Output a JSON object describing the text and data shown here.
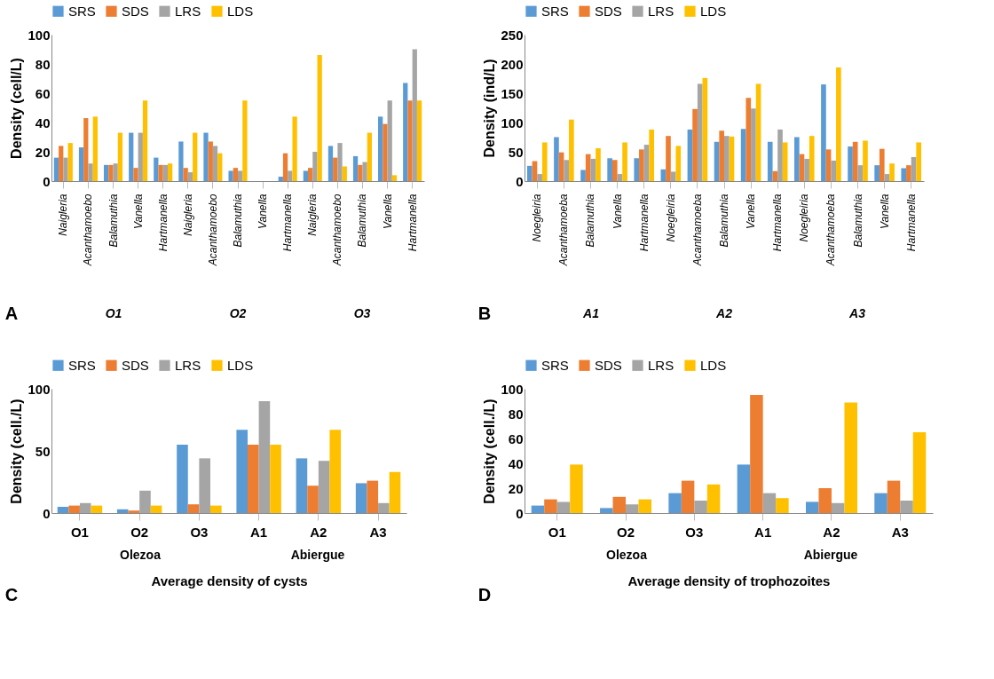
{
  "chart_data": [
    {
      "type": "bar",
      "ylabel": "Density (cell/L)",
      "legend": "top",
      "ylim": [
        0,
        100
      ],
      "yticks": [
        0,
        20,
        40,
        60,
        80,
        100
      ],
      "annotations": [
        "A",
        "O1",
        "O2",
        "O3"
      ],
      "categories": [
        "Naigleria",
        "Acanthamoebo",
        "Balamuthia",
        "Vanella",
        "Hartmanella",
        "Naigleria",
        "Acanthamoebo",
        "Balamuthia",
        "Vanella",
        "Hartmanella",
        "Naigleria",
        "Acanthamoebo",
        "Balamuthia",
        "Vanella",
        "Hartmanella"
      ],
      "series": [
        {
          "name": "SRS",
          "color": "#5b9bd5",
          "values": [
            16,
            23,
            11,
            33,
            16,
            27,
            33,
            7,
            0,
            3,
            7,
            24,
            17,
            44,
            67
          ]
        },
        {
          "name": "SDS",
          "color": "#ed7d31",
          "values": [
            24,
            43,
            11,
            9,
            11,
            9,
            27,
            9,
            0,
            19,
            9,
            16,
            11,
            39,
            55
          ]
        },
        {
          "name": "LRS",
          "color": "#a5a5a5",
          "values": [
            16,
            12,
            12,
            33,
            11,
            6,
            24,
            7,
            0,
            7,
            20,
            26,
            13,
            55,
            90
          ]
        },
        {
          "name": "LDS",
          "color": "#ffc000",
          "values": [
            26,
            44,
            33,
            55,
            12,
            33,
            19,
            55,
            0,
            44,
            86,
            10,
            33,
            4,
            55
          ]
        }
      ]
    },
    {
      "type": "bar",
      "ylabel": "Density (ind/L)",
      "legend": "top",
      "ylim": [
        0,
        250
      ],
      "yticks": [
        0,
        50,
        100,
        150,
        200,
        250
      ],
      "annotations": [
        "B",
        "A1",
        "A2",
        "A3"
      ],
      "categories": [
        "Noegleiria",
        "Acanthamoeba",
        "Balamuthia",
        "Vanella",
        "Hartmanella",
        "Noegleiria",
        "Acanthamoeba",
        "Balamuthia",
        "Vanella",
        "Hartmanella",
        "Noegleiria",
        "Acanthamoeba",
        "Balamuthia",
        "Vanella",
        "Hartmanella"
      ],
      "series": [
        {
          "name": "SRS",
          "color": "#5b9bd5",
          "values": [
            26,
            75,
            19,
            39,
            39,
            20,
            88,
            67,
            89,
            67,
            75,
            165,
            59,
            27,
            22
          ]
        },
        {
          "name": "SDS",
          "color": "#ed7d31",
          "values": [
            34,
            49,
            46,
            36,
            54,
            77,
            123,
            86,
            142,
            17,
            46,
            54,
            67,
            55,
            27
          ]
        },
        {
          "name": "LRS",
          "color": "#a5a5a5",
          "values": [
            12,
            36,
            38,
            12,
            62,
            16,
            166,
            77,
            124,
            88,
            38,
            35,
            27,
            12,
            41
          ]
        },
        {
          "name": "LDS",
          "color": "#ffc000",
          "values": [
            66,
            105,
            56,
            66,
            88,
            60,
            176,
            76,
            166,
            66,
            77,
            194,
            69,
            30,
            66
          ]
        }
      ]
    },
    {
      "type": "bar",
      "ylabel": "Density  (cell./L)",
      "xlabel": "Average density of cysts",
      "legend": "top",
      "ylim": [
        0,
        100
      ],
      "yticks": [
        0,
        50,
        100
      ],
      "annotations": [
        "C",
        "Olezoa",
        "Abiergue"
      ],
      "categories": [
        "O1",
        "O2",
        "O3",
        "A1",
        "A2",
        "A3"
      ],
      "series": [
        {
          "name": "SRS",
          "color": "#5b9bd5",
          "values": [
            5,
            3,
            55,
            67,
            44,
            24
          ]
        },
        {
          "name": "SDS",
          "color": "#ed7d31",
          "values": [
            6,
            2,
            7,
            55,
            22,
            26
          ]
        },
        {
          "name": "LRS",
          "color": "#a5a5a5",
          "values": [
            8,
            18,
            44,
            90,
            42,
            8
          ]
        },
        {
          "name": "LDS",
          "color": "#ffc000",
          "values": [
            6,
            6,
            6,
            55,
            67,
            33
          ]
        }
      ]
    },
    {
      "type": "bar",
      "ylabel": "Density (cell./L)",
      "xlabel": "Average density of trophozoites",
      "legend": "top",
      "ylim": [
        0,
        100
      ],
      "yticks": [
        0,
        20,
        40,
        60,
        80,
        100
      ],
      "annotations": [
        "D",
        "Olezoa",
        "Abiergue"
      ],
      "categories": [
        "O1",
        "O2",
        "O3",
        "A1",
        "A2",
        "A3"
      ],
      "series": [
        {
          "name": "SRS",
          "color": "#5b9bd5",
          "values": [
            6,
            4,
            16,
            39,
            9,
            16
          ]
        },
        {
          "name": "SDS",
          "color": "#ed7d31",
          "values": [
            11,
            13,
            26,
            95,
            20,
            26
          ]
        },
        {
          "name": "LRS",
          "color": "#a5a5a5",
          "values": [
            9,
            7,
            10,
            16,
            8,
            10
          ]
        },
        {
          "name": "LDS",
          "color": "#ffc000",
          "values": [
            39,
            11,
            23,
            12,
            89,
            65
          ]
        }
      ]
    }
  ]
}
